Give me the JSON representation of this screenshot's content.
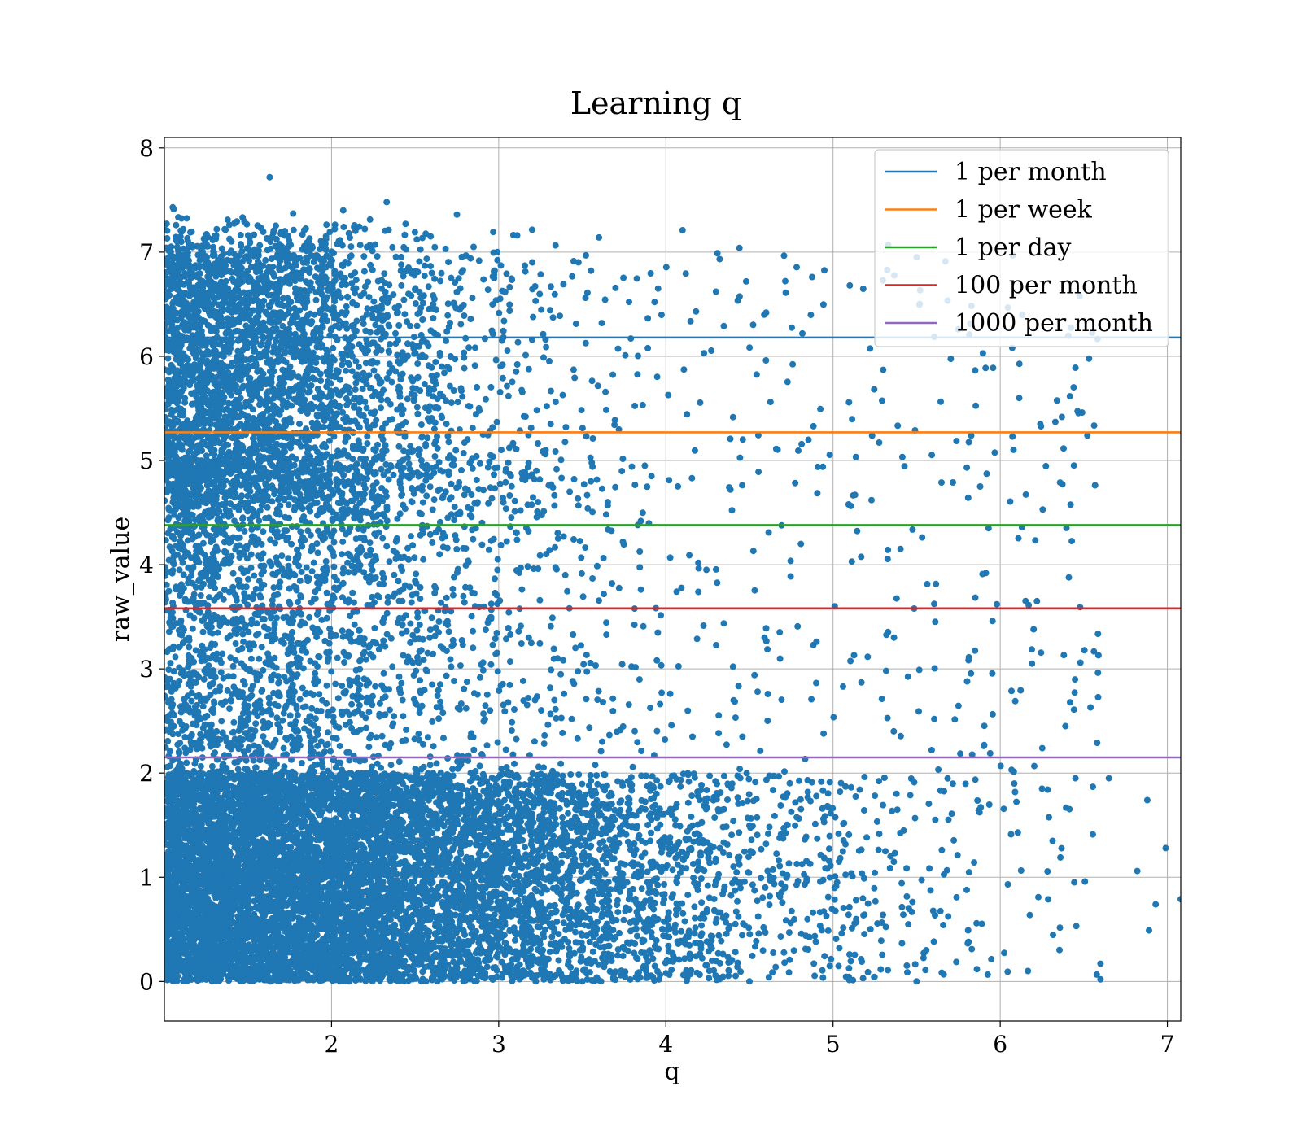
{
  "chart_data": {
    "type": "scatter",
    "title": "Learning q",
    "xlabel": "q",
    "ylabel": "raw_value",
    "xlim": [
      1.0,
      7.08
    ],
    "ylim": [
      -0.38,
      8.1
    ],
    "xticks": [
      2,
      3,
      4,
      5,
      6,
      7
    ],
    "yticks": [
      0,
      1,
      2,
      3,
      4,
      5,
      6,
      7,
      8
    ],
    "grid": true,
    "legend_position": "top-right",
    "scatter_color": "#1f77b4",
    "reference_lines": [
      {
        "name": "1 per month",
        "y": 6.18,
        "color": "#1f77b4"
      },
      {
        "name": "1 per week",
        "y": 5.27,
        "color": "#ff7f0e"
      },
      {
        "name": "1 per day",
        "y": 4.38,
        "color": "#2ca02c"
      },
      {
        "name": "100 per month",
        "y": 3.58,
        "color": "#d62728"
      },
      {
        "name": "1000 per month",
        "y": 2.15,
        "color": "#9467bd"
      }
    ],
    "points_sample": [
      [
        1.63,
        7.72
      ],
      [
        2.33,
        7.48
      ],
      [
        1.05,
        7.43
      ],
      [
        2.07,
        7.4
      ],
      [
        1.77,
        7.37
      ],
      [
        2.75,
        7.36
      ],
      [
        4.1,
        7.21
      ],
      [
        3.11,
        7.16
      ],
      [
        3.6,
        7.14
      ],
      [
        4.44,
        7.04
      ],
      [
        2.85,
        7.05
      ],
      [
        5.33,
        7.07
      ],
      [
        5.5,
        6.95
      ],
      [
        4.6,
        6.42
      ],
      [
        4.3,
        6.62
      ],
      [
        5.1,
        6.68
      ],
      [
        5.3,
        5.87
      ],
      [
        6.45,
        5.89
      ],
      [
        6.49,
        5.46
      ],
      [
        6.24,
        5.35
      ],
      [
        6.33,
        5.37
      ],
      [
        5.88,
        4.75
      ],
      [
        5.93,
        4.35
      ],
      [
        5.23,
        4.62
      ],
      [
        6.22,
        3.65
      ],
      [
        6.2,
        3.38
      ],
      [
        5.98,
        3.62
      ],
      [
        6.48,
        3.06
      ],
      [
        6.19,
        3.05
      ],
      [
        6.09,
        2.69
      ],
      [
        5.01,
        3.6
      ],
      [
        5.17,
        2.87
      ],
      [
        5.06,
        2.83
      ],
      [
        5.94,
        2.19
      ],
      [
        6.58,
        2.29
      ],
      [
        5.59,
        2.22
      ],
      [
        7.08,
        0.79
      ],
      [
        6.99,
        1.28
      ],
      [
        6.88,
        1.74
      ],
      [
        6.82,
        1.06
      ],
      [
        6.93,
        0.74
      ],
      [
        6.89,
        0.49
      ],
      [
        6.6,
        0.02
      ],
      [
        6.6,
        0.17
      ],
      [
        6.36,
        1.19
      ],
      [
        6.65,
        1.95
      ],
      [
        6.45,
        1.95
      ],
      [
        6.25,
        1.85
      ],
      [
        2.05,
        0.0
      ],
      [
        3.5,
        0.0
      ],
      [
        4.5,
        0.0
      ],
      [
        5.5,
        0.0
      ]
    ]
  }
}
